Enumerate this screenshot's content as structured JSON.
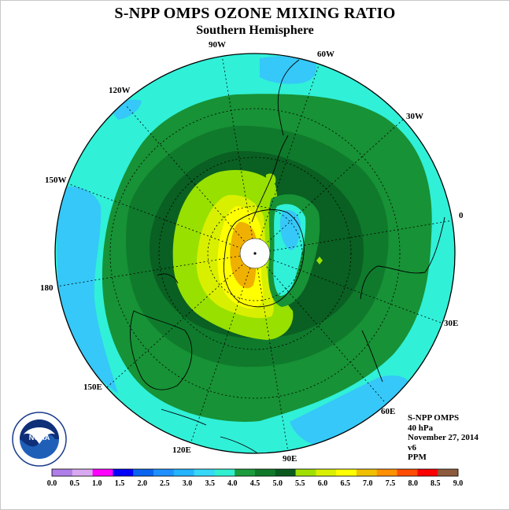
{
  "title": "S-NPP OMPS OZONE MIXING RATIO",
  "subtitle": "Southern Hemisphere",
  "longitude_labels": [
    {
      "name": "lon-90w",
      "text": "90W"
    },
    {
      "name": "lon-60w",
      "text": "60W"
    },
    {
      "name": "lon-30w",
      "text": "30W"
    },
    {
      "name": "lon-0",
      "text": "0"
    },
    {
      "name": "lon-30e",
      "text": "30E"
    },
    {
      "name": "lon-60e",
      "text": "60E"
    },
    {
      "name": "lon-90e",
      "text": "90E"
    },
    {
      "name": "lon-120e",
      "text": "120E"
    },
    {
      "name": "lon-150e",
      "text": "150E"
    },
    {
      "name": "lon-180",
      "text": "180"
    },
    {
      "name": "lon-150w",
      "text": "150W"
    },
    {
      "name": "lon-120w",
      "text": "120W"
    }
  ],
  "info": {
    "instrument": "S-NPP OMPS",
    "level": "40 hPa",
    "date": "November 27, 2014",
    "version": "v6",
    "units": "PPM"
  },
  "logo": {
    "text": "NOAA",
    "icon": "noaa-logo-icon"
  },
  "colorbar": {
    "ticks": [
      "0.0",
      "0.5",
      "1.0",
      "1.5",
      "2.0",
      "2.5",
      "3.0",
      "3.5",
      "4.0",
      "4.5",
      "5.0",
      "5.5",
      "6.0",
      "6.5",
      "7.0",
      "7.5",
      "8.0",
      "8.5",
      "9.0"
    ],
    "colors": [
      "#b07ee8",
      "#d8a8f0",
      "#ff00ff",
      "#0000ff",
      "#0a64f0",
      "#1e90ff",
      "#22b4ff",
      "#35d8f8",
      "#30f0d0",
      "#1c9c3c",
      "#107a2a",
      "#0a5a1e",
      "#a0e000",
      "#d8f000",
      "#ffff00",
      "#f0c000",
      "#ff9000",
      "#ff4c00",
      "#ff0000",
      "#8c5a3c"
    ]
  },
  "palette": {
    "cyan_outer": "#30f0d8",
    "sky": "#35c8f8",
    "green_mid": "#179236",
    "green_dark": "#0f7a2c",
    "green_darker": "#0a5f22",
    "lime": "#98e000",
    "yellow_green": "#d8f000",
    "yellow": "#ffff00",
    "orange": "#f0b000",
    "pole_fill": "#ffffff"
  }
}
